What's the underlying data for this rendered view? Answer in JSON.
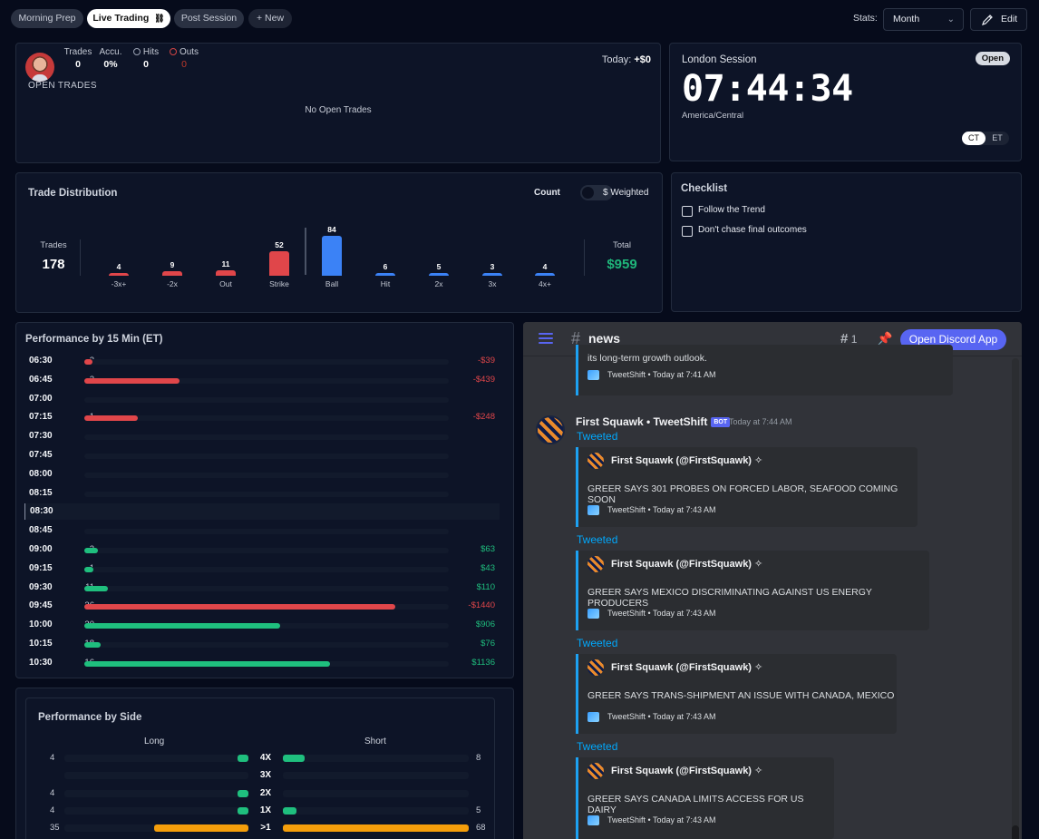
{
  "tabs": [
    {
      "label": "Morning Prep"
    },
    {
      "label": "Live Trading"
    },
    {
      "label": "Post Session"
    },
    {
      "label": "+ New"
    }
  ],
  "toolbar": {
    "stats_label": "Stats:",
    "period": "Month",
    "edit_label": "Edit"
  },
  "open_trades": {
    "stats": [
      {
        "label": "Trades",
        "value": "0"
      },
      {
        "label": "Accu.",
        "value": "0%"
      },
      {
        "label": "Hits",
        "value": "0"
      },
      {
        "label": "Outs",
        "value": "0"
      }
    ],
    "title": "OPEN TRADES",
    "today_label": "Today:",
    "today_value": "+$0",
    "empty": "No Open Trades"
  },
  "session": {
    "title": "London Session",
    "status": "Open",
    "clock": "07:44:34",
    "timezone": "America/Central",
    "tz_options": [
      "CT",
      "ET"
    ]
  },
  "distribution": {
    "title": "Trade Distribution",
    "toggle_left": "Count",
    "toggle_right": "$ Weighted",
    "trades_label": "Trades",
    "trades_value": "178",
    "total_label": "Total",
    "total_value": "$959"
  },
  "chart_data": {
    "type": "bar",
    "categories": [
      "-3x+",
      "-2x",
      "Out",
      "Strike",
      "Ball",
      "Hit",
      "2x",
      "3x",
      "4x+"
    ],
    "values": [
      4,
      9,
      11,
      52,
      84,
      6,
      5,
      3,
      4
    ],
    "colors": [
      "#e0464a",
      "#e0464a",
      "#e0464a",
      "#e0464a",
      "#3b82f6",
      "#3b82f6",
      "#3b82f6",
      "#3b82f6",
      "#3b82f6"
    ]
  },
  "checklist": {
    "title": "Checklist",
    "items": [
      "Follow the Trend",
      "Don't chase final outcomes"
    ]
  },
  "perf15": {
    "title": "Performance by 15 Min (ET)",
    "rows": [
      {
        "time": "06:30",
        "count": "2",
        "pnl": "-$39",
        "value": -39
      },
      {
        "time": "06:45",
        "count": "2",
        "pnl": "-$439",
        "value": -439
      },
      {
        "time": "07:00",
        "count": "",
        "pnl": "",
        "value": 0
      },
      {
        "time": "07:15",
        "count": "1",
        "pnl": "-$248",
        "value": -248
      },
      {
        "time": "07:30",
        "count": "",
        "pnl": "",
        "value": 0
      },
      {
        "time": "07:45",
        "count": "",
        "pnl": "",
        "value": 0
      },
      {
        "time": "08:00",
        "count": "",
        "pnl": "",
        "value": 0
      },
      {
        "time": "08:15",
        "count": "",
        "pnl": "",
        "value": 0
      },
      {
        "time": "08:30",
        "count": "",
        "pnl": "",
        "value": 0
      },
      {
        "time": "08:45",
        "count": "",
        "pnl": "",
        "value": 0
      },
      {
        "time": "09:00",
        "count": "2",
        "pnl": "$63",
        "value": 63
      },
      {
        "time": "09:15",
        "count": "1",
        "pnl": "$43",
        "value": 43
      },
      {
        "time": "09:30",
        "count": "11",
        "pnl": "$110",
        "value": 110
      },
      {
        "time": "09:45",
        "count": "36",
        "pnl": "-$1440",
        "value": -1440
      },
      {
        "time": "10:00",
        "count": "30",
        "pnl": "$906",
        "value": 906
      },
      {
        "time": "10:15",
        "count": "18",
        "pnl": "$76",
        "value": 76
      },
      {
        "time": "10:30",
        "count": "16",
        "pnl": "$1136",
        "value": 1136
      }
    ]
  },
  "perf_side": {
    "title": "Performance by Side",
    "long_label": "Long",
    "short_label": "Short",
    "rows": [
      {
        "label": "4X",
        "long": "4",
        "short": "8",
        "long_v": 4,
        "short_v": 8,
        "color": "#1fbf7e"
      },
      {
        "label": "3X",
        "long": "",
        "short": "",
        "long_v": 0,
        "short_v": 0,
        "color": "#1fbf7e"
      },
      {
        "label": "2X",
        "long": "4",
        "short": "",
        "long_v": 4,
        "short_v": 0,
        "color": "#1fbf7e"
      },
      {
        "label": "1X",
        "long": "4",
        "short": "5",
        "long_v": 4,
        "short_v": 5,
        "color": "#1fbf7e"
      },
      {
        "label": ">1",
        "long": "35",
        "short": "68",
        "long_v": 35,
        "short_v": 68,
        "color": "#f59e0b"
      }
    ]
  },
  "discord": {
    "channel": "news",
    "threads": "1",
    "open_label": "Open Discord App",
    "top_text": "its long-term growth outlook.",
    "top_footer": "TweetShift • Today at 7:41 AM",
    "author": "First Squawk • TweetShift",
    "bot": "BOT",
    "time": "Today at 7:44 AM",
    "tweeted": "Tweeted",
    "embeds": [
      {
        "author": "First Squawk (@FirstSquawk) ✧",
        "text": "GREER SAYS 301 PROBES ON FORCED LABOR, SEAFOOD COMING SOON",
        "footer": "TweetShift • Today at 7:43 AM"
      },
      {
        "author": "First Squawk (@FirstSquawk) ✧",
        "text": "GREER SAYS MEXICO DISCRIMINATING AGAINST US ENERGY PRODUCERS",
        "footer": "TweetShift • Today at 7:43 AM"
      },
      {
        "author": "First Squawk (@FirstSquawk) ✧",
        "text": "GREER SAYS TRANS-SHIPMENT AN ISSUE WITH CANADA, MEXICO",
        "footer": "TweetShift • Today at 7:43 AM"
      },
      {
        "author": "First Squawk (@FirstSquawk) ✧",
        "text": "GREER SAYS CANADA LIMITS ACCESS FOR US DAIRY",
        "footer": "TweetShift • Today at 7:43 AM"
      }
    ]
  }
}
